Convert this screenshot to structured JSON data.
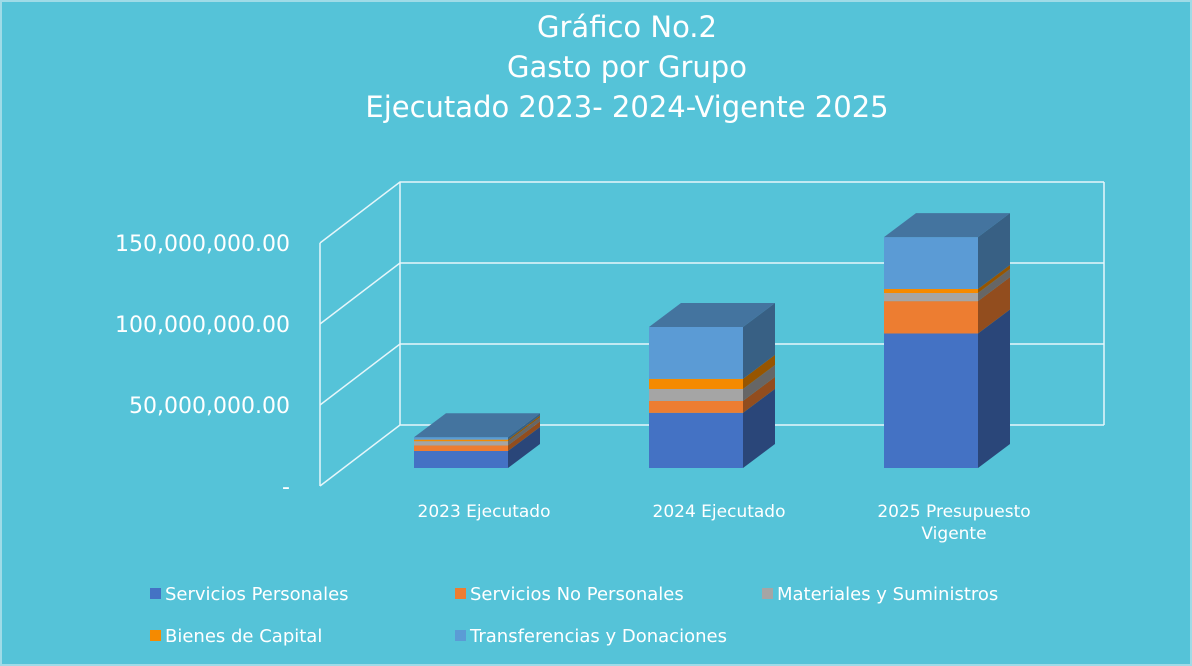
{
  "chart_data": {
    "type": "bar3d_stacked",
    "title": [
      "Gráfico No.2",
      "Gasto por Grupo",
      "Ejecutado 2023- 2024-Vigente 2025"
    ],
    "categories": [
      "2023 Ejecutado",
      "2024 Ejecutado",
      "2025 Presupuesto Vigente"
    ],
    "series": [
      {
        "name": "Servicios Personales",
        "color": "#4472c4",
        "values": [
          10500000,
          34000000,
          83000000
        ]
      },
      {
        "name": "Servicios No Personales",
        "color": "#ed7d31",
        "values": [
          3500000,
          7400000,
          20000000
        ]
      },
      {
        "name": "Materiales y Suministros",
        "color": "#a5a5a5",
        "values": [
          2500000,
          7400000,
          5000000
        ]
      },
      {
        "name": "Bienes de Capital",
        "color": "#f58a00",
        "values": [
          1000000,
          6200000,
          2500000
        ]
      },
      {
        "name": "Transferencias y Donaciones",
        "color": "#5b9bd5",
        "values": [
          1500000,
          32000000,
          32000000
        ]
      }
    ],
    "ylim": [
      0,
      150000000
    ],
    "yticks": [
      {
        "value": 0,
        "label": "-"
      },
      {
        "value": 50000000,
        "label": "50,000,000.00"
      },
      {
        "value": 100000000,
        "label": "100,000,000.00"
      },
      {
        "value": 150000000,
        "label": "150,000,000.00"
      }
    ],
    "grid": true,
    "legend": "bottom"
  }
}
